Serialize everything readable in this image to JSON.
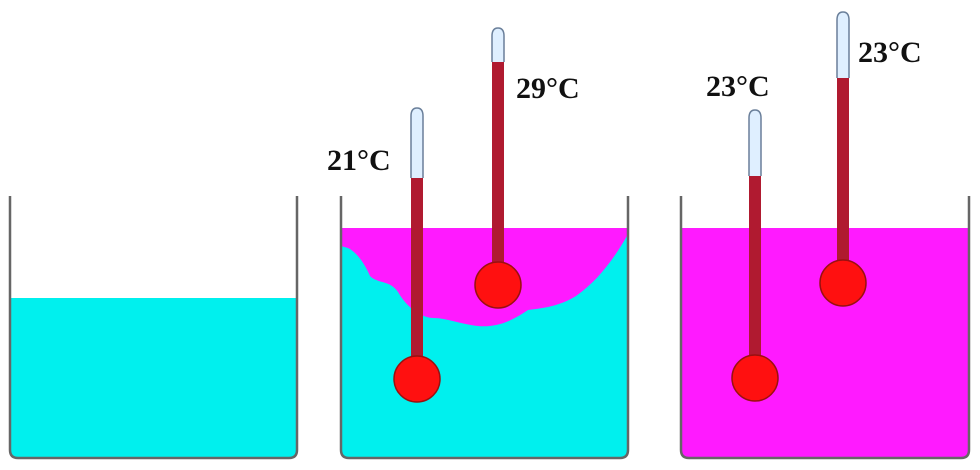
{
  "colors": {
    "cold_water": "#00f0ee",
    "warm_water": "#ff1aff",
    "mercury": "#b01a30",
    "bulb": "#ff1010",
    "tube": "#dfefff",
    "beaker": "#666666"
  },
  "beakers": [
    {
      "name": "beaker-cold-water",
      "thermometers": []
    },
    {
      "name": "beaker-mixing",
      "thermometers": [
        {
          "name": "thermometer-lower",
          "label": "21°C"
        },
        {
          "name": "thermometer-upper",
          "label": "29°C"
        }
      ]
    },
    {
      "name": "beaker-mixed",
      "thermometers": [
        {
          "name": "thermometer-lower",
          "label": "23°C"
        },
        {
          "name": "thermometer-upper",
          "label": "23°C"
        }
      ]
    }
  ]
}
